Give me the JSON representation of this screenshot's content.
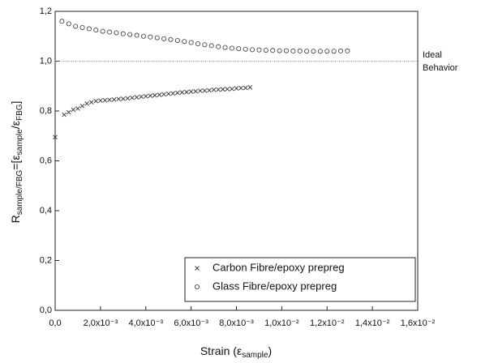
{
  "chart_data": {
    "type": "scatter",
    "xlabel": [
      "Strain (ε",
      "sample",
      ")"
    ],
    "ylabel": [
      "R",
      "sample/FBG",
      "=[ε",
      "sample",
      "/ε",
      "FBG",
      "]"
    ],
    "annotation": [
      "Ideal",
      "Behavior"
    ],
    "reference_line": 1.0,
    "xlim": [
      0,
      0.016
    ],
    "ylim": [
      0,
      1.2
    ],
    "xticks": [
      {
        "value": 0,
        "label": "0,0"
      },
      {
        "value": 0.002,
        "label": "2,0x10⁻³"
      },
      {
        "value": 0.004,
        "label": "4,0x10⁻³"
      },
      {
        "value": 0.006,
        "label": "6,0x10⁻³"
      },
      {
        "value": 0.008,
        "label": "8,0x10⁻³"
      },
      {
        "value": 0.01,
        "label": "1,0x10⁻²"
      },
      {
        "value": 0.012,
        "label": "1,2x10⁻²"
      },
      {
        "value": 0.014,
        "label": "1,4x10⁻²"
      },
      {
        "value": 0.016,
        "label": "1,6x10⁻²"
      }
    ],
    "yticks": [
      {
        "value": 0,
        "label": "0,0"
      },
      {
        "value": 0.2,
        "label": "0,2"
      },
      {
        "value": 0.4,
        "label": "0,4"
      },
      {
        "value": 0.6,
        "label": "0,6"
      },
      {
        "value": 0.8,
        "label": "0,8"
      },
      {
        "value": 1.0,
        "label": "1,0"
      },
      {
        "value": 1.2,
        "label": "1,2"
      }
    ],
    "legend": "lower right",
    "series": [
      {
        "name": "Carbon Fibre/epoxy prepreg",
        "marker": "x",
        "color": "#333333",
        "x": [
          0,
          0.0004,
          0.0006,
          0.0008,
          0.001,
          0.0012,
          0.0014,
          0.0016,
          0.0018,
          0.002,
          0.0022,
          0.0024,
          0.0026,
          0.0028,
          0.003,
          0.0032,
          0.0034,
          0.0036,
          0.0038,
          0.004,
          0.0042,
          0.0044,
          0.0046,
          0.0048,
          0.005,
          0.0052,
          0.0054,
          0.0056,
          0.0058,
          0.006,
          0.0062,
          0.0064,
          0.0066,
          0.0068,
          0.007,
          0.0072,
          0.0074,
          0.0076,
          0.0078,
          0.008,
          0.0082,
          0.0084,
          0.0086
        ],
        "values": [
          0.695,
          0.785,
          0.795,
          0.805,
          0.81,
          0.82,
          0.83,
          0.835,
          0.84,
          0.842,
          0.843,
          0.845,
          0.846,
          0.848,
          0.849,
          0.851,
          0.853,
          0.855,
          0.857,
          0.859,
          0.861,
          0.863,
          0.865,
          0.867,
          0.869,
          0.871,
          0.873,
          0.875,
          0.876,
          0.878,
          0.879,
          0.881,
          0.882,
          0.883,
          0.885,
          0.886,
          0.887,
          0.888,
          0.889,
          0.891,
          0.892,
          0.893,
          0.895
        ]
      },
      {
        "name": "Glass Fibre/epoxy prepreg",
        "marker": "o",
        "color": "#333333",
        "x": [
          0.0003,
          0.0006,
          0.0009,
          0.0012,
          0.0015,
          0.0018,
          0.0021,
          0.0024,
          0.0027,
          0.003,
          0.0033,
          0.0036,
          0.0039,
          0.0042,
          0.0045,
          0.0048,
          0.0051,
          0.0054,
          0.0057,
          0.006,
          0.0063,
          0.0066,
          0.0069,
          0.0072,
          0.0075,
          0.0078,
          0.0081,
          0.0084,
          0.0087,
          0.009,
          0.0093,
          0.0096,
          0.0099,
          0.0102,
          0.0105,
          0.0108,
          0.0111,
          0.0114,
          0.0117,
          0.012,
          0.0123,
          0.0126,
          0.0129
        ],
        "values": [
          1.16,
          1.15,
          1.14,
          1.135,
          1.13,
          1.125,
          1.12,
          1.117,
          1.114,
          1.11,
          1.107,
          1.104,
          1.1,
          1.097,
          1.094,
          1.09,
          1.087,
          1.083,
          1.079,
          1.075,
          1.07,
          1.066,
          1.062,
          1.058,
          1.055,
          1.052,
          1.05,
          1.048,
          1.046,
          1.045,
          1.044,
          1.043,
          1.042,
          1.042,
          1.041,
          1.041,
          1.04,
          1.04,
          1.04,
          1.04,
          1.04,
          1.041,
          1.041
        ]
      }
    ]
  }
}
